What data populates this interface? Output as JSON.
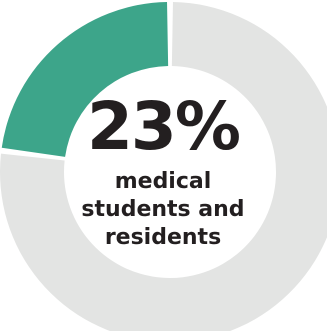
{
  "chart_data": {
    "type": "pie",
    "variant": "donut",
    "categories": [
      "medical students and residents",
      ""
    ],
    "values": [
      23,
      77
    ],
    "value_label": "23%",
    "caption": "medical\nstudents and\nresidents",
    "colors": {
      "highlight": "#3da58a",
      "remainder": "#e3e4e3",
      "text": "#231f20"
    }
  }
}
